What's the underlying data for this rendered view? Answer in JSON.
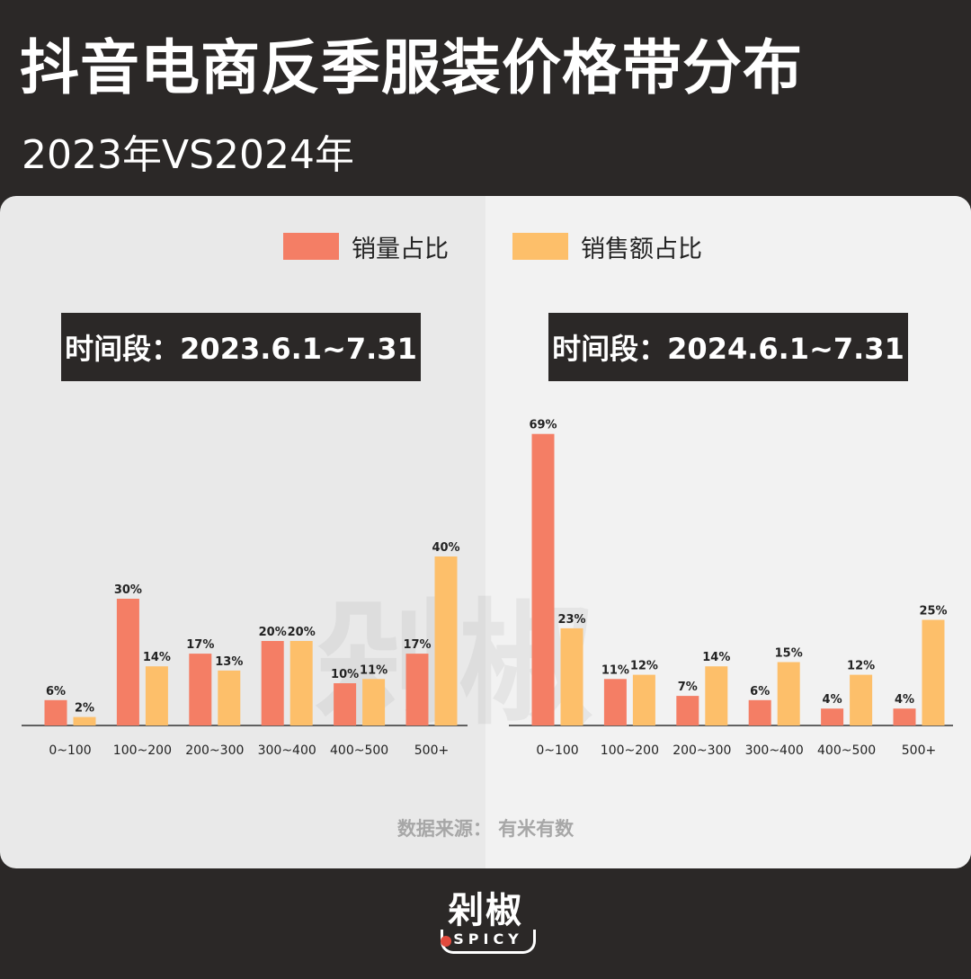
{
  "title": "抖音电商反季服装价格带分布",
  "subtitle": "2023年VS2024年",
  "legend": {
    "sales_volume": "销量占比",
    "sales_amount": "销售额占比"
  },
  "colors": {
    "sales_volume": "#f47e65",
    "sales_amount": "#fdbf6a",
    "background": "#2b2827"
  },
  "source": "数据来源：  有米有数",
  "watermark": "剁椒",
  "logo": {
    "cn": "剁椒",
    "en": "SPICY"
  },
  "chart_data": [
    {
      "type": "bar",
      "title": "时间段：2023.6.1~7.31",
      "categories": [
        "0~100",
        "100~200",
        "200~300",
        "300~400",
        "400~500",
        "500+"
      ],
      "series": [
        {
          "name": "销量占比",
          "values": [
            6,
            30,
            17,
            20,
            10,
            17
          ],
          "labels": [
            "6%",
            "30%",
            "17%",
            "20%",
            "10%",
            "17%"
          ]
        },
        {
          "name": "销售额占比",
          "values": [
            2,
            14,
            13,
            20,
            11,
            40
          ],
          "labels": [
            "2%",
            "14%",
            "13%",
            "20%",
            "11%",
            "40%"
          ]
        }
      ],
      "ylim": [
        0,
        70
      ],
      "grid": false,
      "legend": "top"
    },
    {
      "type": "bar",
      "title": "时间段：2024.6.1~7.31",
      "categories": [
        "0~100",
        "100~200",
        "200~300",
        "300~400",
        "400~500",
        "500+"
      ],
      "series": [
        {
          "name": "销量占比",
          "values": [
            69,
            11,
            7,
            6,
            4,
            4
          ],
          "labels": [
            "69%",
            "11%",
            "7%",
            "6%",
            "4%",
            "4%"
          ]
        },
        {
          "name": "销售额占比",
          "values": [
            23,
            12,
            14,
            15,
            12,
            25
          ],
          "labels": [
            "23%",
            "12%",
            "14%",
            "15%",
            "12%",
            "25%"
          ]
        }
      ],
      "ylim": [
        0,
        70
      ],
      "grid": false,
      "legend": "top"
    }
  ]
}
